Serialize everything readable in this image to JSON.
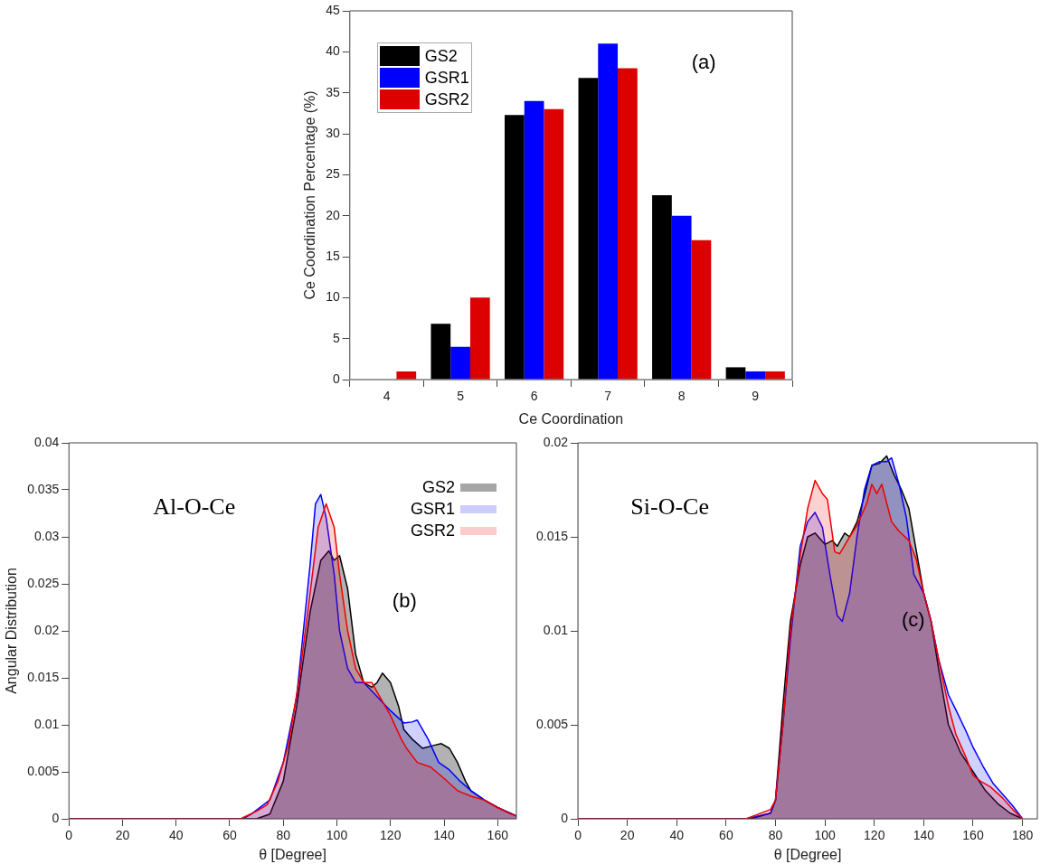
{
  "chart_data": [
    {
      "type": "bar",
      "xlabel": "Ce Coordination",
      "ylabel": "Ce Coordination Percentage (%)",
      "categories": [
        "4",
        "5",
        "6",
        "7",
        "8",
        "9"
      ],
      "series": [
        {
          "name": "GS2",
          "color": "#000000",
          "values": [
            0,
            6.8,
            32.3,
            36.8,
            22.5,
            1.5
          ]
        },
        {
          "name": "GSR1",
          "color": "#0000ff",
          "values": [
            0,
            4,
            34,
            41,
            20,
            1
          ]
        },
        {
          "name": "GSR2",
          "color": "#dd0000",
          "values": [
            1,
            10,
            33,
            38,
            17,
            1
          ]
        }
      ],
      "ylim": [
        0,
        45
      ],
      "yticks": [
        0,
        5,
        10,
        15,
        20,
        25,
        30,
        35,
        40,
        45
      ],
      "legend": "top left",
      "annotations": [
        "(a)"
      ]
    },
    {
      "type": "area",
      "xlabel": "θ [Degree]",
      "ylabel": "Angular Distribution",
      "xlim": [
        0,
        167
      ],
      "xticks": [
        0,
        20,
        40,
        60,
        80,
        100,
        120,
        140,
        160
      ],
      "ylim": [
        0,
        0.04
      ],
      "yticks": [
        0,
        0.005,
        0.01,
        0.015,
        0.02,
        0.025,
        0.03,
        0.035,
        0.04
      ],
      "legend": "top right",
      "annotations": [
        "Al-O-Ce",
        "(b)"
      ],
      "series": [
        {
          "name": "GS2",
          "color": "#000000",
          "x": [
            0,
            70,
            75,
            80,
            85,
            90,
            94,
            97,
            99,
            101,
            104,
            107,
            110,
            113,
            115,
            117,
            120,
            123,
            125,
            128,
            132,
            136,
            139,
            142,
            145,
            148,
            150,
            155,
            160,
            167
          ],
          "values": [
            0,
            0,
            0.0005,
            0.004,
            0.012,
            0.022,
            0.0275,
            0.0285,
            0.0275,
            0.028,
            0.0245,
            0.0175,
            0.0145,
            0.014,
            0.0145,
            0.0155,
            0.0145,
            0.012,
            0.0095,
            0.0085,
            0.0075,
            0.0078,
            0.008,
            0.0075,
            0.006,
            0.004,
            0.003,
            0.002,
            0.0012,
            0.0003
          ]
        },
        {
          "name": "GSR1",
          "color": "#0000ff",
          "x": [
            0,
            65,
            68,
            75,
            80,
            85,
            90,
            92,
            94,
            96,
            99,
            101,
            104,
            107,
            110,
            115,
            120,
            125,
            128,
            130,
            134,
            138,
            142,
            146,
            150,
            155,
            160,
            163,
            167
          ],
          "values": [
            0,
            0,
            0.0005,
            0.002,
            0.006,
            0.013,
            0.027,
            0.0335,
            0.0345,
            0.032,
            0.026,
            0.02,
            0.016,
            0.0145,
            0.0145,
            0.013,
            0.0115,
            0.0102,
            0.0103,
            0.0105,
            0.0085,
            0.006,
            0.0052,
            0.004,
            0.003,
            0.002,
            0.0012,
            0.0008,
            0.0003
          ]
        },
        {
          "name": "GSR2",
          "color": "#ee0000",
          "x": [
            0,
            64,
            70,
            74,
            78,
            82,
            86,
            90,
            93,
            96,
            99,
            101,
            104,
            107,
            110,
            113,
            116,
            120,
            124,
            126,
            130,
            135,
            140,
            145,
            150,
            155,
            160,
            165,
            167
          ],
          "values": [
            0,
            0,
            0.0008,
            0.0015,
            0.004,
            0.008,
            0.015,
            0.024,
            0.031,
            0.0335,
            0.031,
            0.026,
            0.02,
            0.016,
            0.0145,
            0.0145,
            0.013,
            0.011,
            0.0085,
            0.0075,
            0.006,
            0.0055,
            0.0043,
            0.003,
            0.0024,
            0.002,
            0.0012,
            0.0005,
            0.0003
          ]
        }
      ]
    },
    {
      "type": "area",
      "xlabel": "θ [Degree]",
      "xlim": [
        0,
        186
      ],
      "xticks": [
        0,
        20,
        40,
        60,
        80,
        100,
        120,
        140,
        160,
        180
      ],
      "ylim": [
        0,
        0.02
      ],
      "yticks": [
        0,
        0.005,
        0.01,
        0.015,
        0.02
      ],
      "annotations": [
        "Si-O-Ce",
        "(c)"
      ],
      "series": [
        {
          "color": "#000000",
          "x": [
            0,
            70,
            78,
            80,
            83,
            86,
            90,
            93,
            96,
            100,
            103,
            105,
            108,
            110,
            113,
            116,
            119,
            122,
            125,
            128,
            131,
            134,
            138,
            140,
            143,
            146,
            150,
            155,
            160,
            165,
            170,
            175,
            180
          ],
          "values": [
            0,
            0,
            0.0003,
            0.001,
            0.006,
            0.0105,
            0.0135,
            0.015,
            0.0152,
            0.0146,
            0.0148,
            0.0145,
            0.0152,
            0.015,
            0.0158,
            0.0172,
            0.0188,
            0.0189,
            0.0193,
            0.0183,
            0.0175,
            0.0165,
            0.0135,
            0.012,
            0.0105,
            0.008,
            0.005,
            0.0035,
            0.0025,
            0.0015,
            0.0008,
            0.0003,
            0
          ]
        },
        {
          "color": "#0000ff",
          "x": [
            0,
            68,
            78,
            80,
            83,
            86,
            90,
            93,
            96,
            99,
            102,
            105,
            107,
            110,
            113,
            116,
            119,
            122,
            125,
            127,
            130,
            133,
            136,
            140,
            143,
            146,
            150,
            153,
            157,
            160,
            164,
            168,
            172,
            176,
            180
          ],
          "values": [
            0,
            0,
            0.0003,
            0.001,
            0.005,
            0.0095,
            0.0145,
            0.0158,
            0.0163,
            0.0155,
            0.013,
            0.0108,
            0.0105,
            0.012,
            0.015,
            0.0175,
            0.0188,
            0.019,
            0.019,
            0.0192,
            0.0178,
            0.016,
            0.013,
            0.012,
            0.0105,
            0.0085,
            0.0066,
            0.0058,
            0.0047,
            0.0038,
            0.0028,
            0.0019,
            0.0013,
            0.0007,
            0
          ]
        },
        {
          "color": "#ee0000",
          "x": [
            0,
            68,
            72,
            78,
            80,
            83,
            86,
            90,
            93,
            96,
            99,
            101,
            104,
            106,
            110,
            113,
            117,
            119,
            121,
            123,
            127,
            130,
            134,
            137,
            140,
            143,
            146,
            150,
            153,
            157,
            160,
            163,
            167,
            172,
            176,
            180
          ],
          "values": [
            0,
            0,
            0.0002,
            0.0005,
            0.001,
            0.005,
            0.01,
            0.014,
            0.0165,
            0.018,
            0.0173,
            0.017,
            0.0142,
            0.0141,
            0.015,
            0.0156,
            0.0168,
            0.0178,
            0.0173,
            0.0178,
            0.0158,
            0.0153,
            0.0148,
            0.0138,
            0.012,
            0.0105,
            0.0085,
            0.006,
            0.0045,
            0.0033,
            0.0023,
            0.002,
            0.0017,
            0.0011,
            0.0005,
            0
          ]
        }
      ]
    }
  ]
}
